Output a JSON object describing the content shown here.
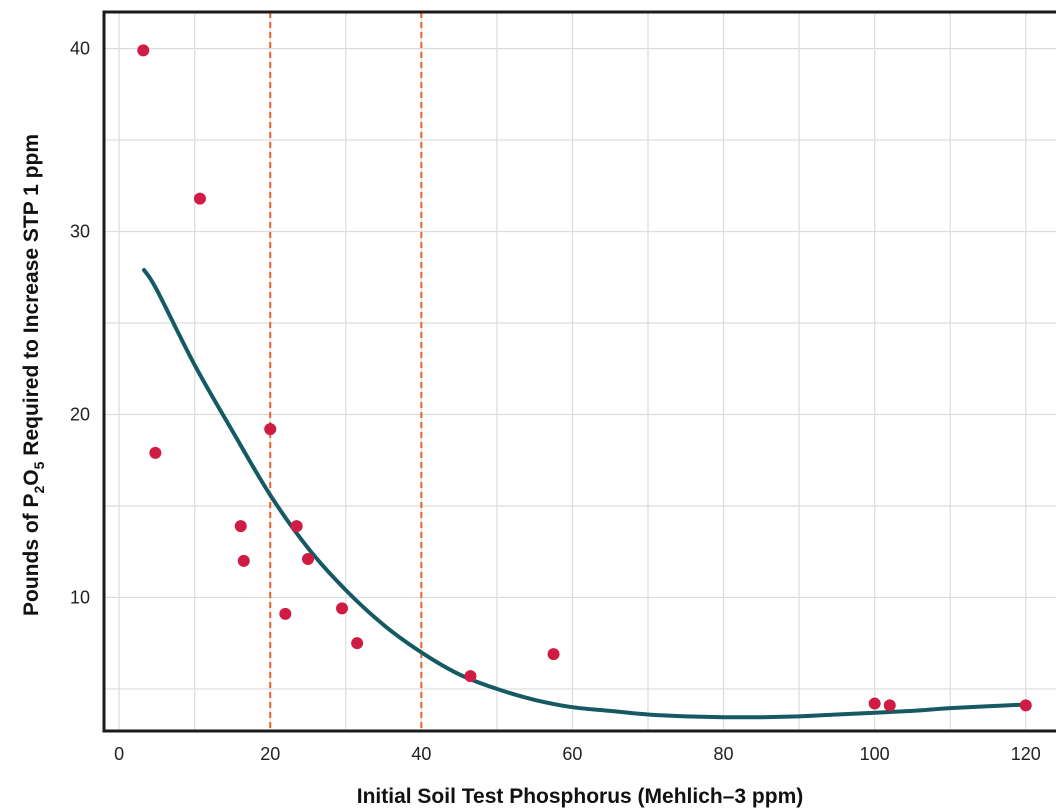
{
  "chart_data": {
    "type": "scatter",
    "title": "",
    "xlabel": "Initial Soil Test Phosphorus (Mehlich–3 ppm)",
    "ylabel": {
      "prefix": "Pounds of P",
      "sub1": "2",
      "mid": "O",
      "sub2": "5",
      "suffix": " Required to Increase STP 1 ppm"
    },
    "xlim": [
      -2,
      124
    ],
    "ylim": [
      2.7,
      42
    ],
    "x_ticks": [
      0,
      20,
      40,
      60,
      80,
      100,
      120
    ],
    "y_ticks": [
      10,
      20,
      30,
      40
    ],
    "grid": true,
    "grid_x_minor": [
      10,
      30,
      50,
      70,
      90,
      110
    ],
    "grid_y_minor": [
      5,
      15,
      25,
      35
    ],
    "vertical_reference_lines": [
      20,
      40
    ],
    "colors": {
      "points": "#d01c45",
      "fit_line": "#155a63",
      "reference_lines": "#e8622a",
      "grid": "#dcdcdc",
      "frame": "#1a1a1a"
    },
    "series": [
      {
        "kind": "points",
        "x": [
          3.2,
          4.8,
          10.7,
          16.1,
          16.5,
          20.0,
          22.0,
          23.5,
          25.0,
          29.5,
          31.5,
          46.5,
          57.5,
          100.0,
          102.0,
          120.0
        ],
        "y": [
          39.9,
          17.9,
          31.8,
          13.9,
          12.0,
          19.2,
          9.1,
          13.9,
          12.1,
          9.4,
          7.5,
          5.7,
          6.9,
          4.2,
          4.1,
          4.1
        ]
      },
      {
        "kind": "fit_curve",
        "x": [
          3.3,
          5,
          10,
          15,
          20,
          25,
          30,
          35,
          40,
          45,
          50,
          55,
          60,
          65,
          70,
          75,
          80,
          85,
          90,
          95,
          100,
          105,
          110,
          115,
          120
        ],
        "y": [
          27.9,
          26.8,
          22.7,
          19.1,
          15.6,
          12.7,
          10.4,
          8.5,
          7.0,
          5.8,
          5.0,
          4.4,
          4.0,
          3.8,
          3.6,
          3.5,
          3.45,
          3.45,
          3.5,
          3.6,
          3.7,
          3.8,
          3.95,
          4.05,
          4.15
        ]
      }
    ]
  }
}
